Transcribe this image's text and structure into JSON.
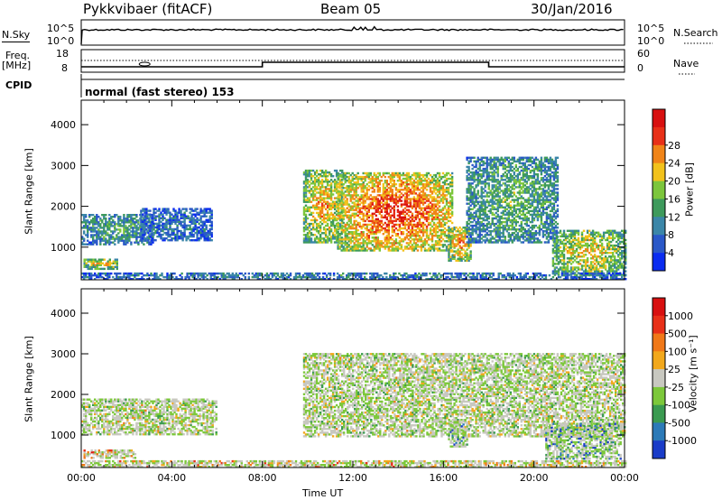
{
  "header": {
    "station": "Pykkvibaer (fitACF)",
    "beam": "Beam 05",
    "date": "30/Jan/2016"
  },
  "nsky_panel": {
    "left_label": "N.Sky",
    "left_ticks": [
      "10^5",
      "10^0"
    ],
    "right_ticks": [
      "10^5",
      "10^0"
    ],
    "right_label": "N.Search"
  },
  "freq_panel": {
    "left_label_1": "Freq.",
    "left_label_2": "[MHz]",
    "left_ticks": [
      "18",
      "8"
    ],
    "right_ticks": [
      "60",
      "0"
    ],
    "right_label": "Nave"
  },
  "cpid": {
    "label": "CPID",
    "text": "normal (fast stereo) 153"
  },
  "chart_data": [
    {
      "type": "heatmap",
      "quantity": "Power",
      "ylabel": "Slant Range [km]",
      "yticks": [
        "1000",
        "2000",
        "3000",
        "4000"
      ],
      "ylim": [
        200,
        4600
      ],
      "xlim": [
        0,
        24
      ],
      "colorbar_label": "Power [dB]",
      "colorbar_ticks": [
        "4",
        "8",
        "12",
        "16",
        "20",
        "24",
        "28"
      ],
      "colorbar_colors": [
        "#0a2cf0",
        "#2a58c8",
        "#3b86a8",
        "#3e9a5c",
        "#7cc63c",
        "#f2c21c",
        "#f08418",
        "#e83018",
        "#d81010"
      ],
      "regions": [
        {
          "t0": 0.0,
          "t1": 3.2,
          "r0": 1050,
          "r1": 1800,
          "level": 0.35
        },
        {
          "t0": 2.6,
          "t1": 5.8,
          "r0": 1150,
          "r1": 1950,
          "level": 0.2
        },
        {
          "t0": 0.1,
          "t1": 1.6,
          "r0": 450,
          "r1": 700,
          "level": 0.6
        },
        {
          "t0": 9.8,
          "t1": 11.5,
          "r0": 1100,
          "r1": 2900,
          "level": 0.65
        },
        {
          "t0": 11.3,
          "t1": 16.4,
          "r0": 900,
          "r1": 2800,
          "level": 0.85
        },
        {
          "t0": 16.2,
          "t1": 17.2,
          "r0": 650,
          "r1": 1500,
          "level": 0.7
        },
        {
          "t0": 17.0,
          "t1": 21.0,
          "r0": 1100,
          "r1": 3200,
          "level": 0.4
        },
        {
          "t0": 20.8,
          "t1": 24.0,
          "r0": 300,
          "r1": 1400,
          "level": 0.6
        },
        {
          "t0": 0.0,
          "t1": 24.0,
          "r0": 200,
          "r1": 360,
          "level": 0.25
        }
      ]
    },
    {
      "type": "heatmap",
      "quantity": "Velocity",
      "ylabel": "Slant Range [km]",
      "yticks": [
        "1000",
        "2000",
        "3000",
        "4000"
      ],
      "ylim": [
        200,
        4600
      ],
      "xlim": [
        0,
        24
      ],
      "xticks": [
        "00:00",
        "04:00",
        "08:00",
        "12:00",
        "16:00",
        "20:00",
        "00:00"
      ],
      "xlabel": "Time UT",
      "colorbar_label": "Velocity [m s⁻¹]",
      "colorbar_ticks": [
        "1000",
        "500",
        "100",
        "25",
        "-25",
        "-100",
        "-500",
        "-1000"
      ],
      "colorbar_colors": [
        "#1a3cc8",
        "#2c7ab8",
        "#3a9a50",
        "#7cc83a",
        "#c8c8c0",
        "#f2a81c",
        "#f07818",
        "#e83018",
        "#d81010"
      ],
      "regions": [
        {
          "t0": 0.0,
          "t1": 6.0,
          "r0": 1000,
          "r1": 1900,
          "level": 0.45
        },
        {
          "t0": 0.1,
          "t1": 2.4,
          "r0": 420,
          "r1": 620,
          "level": 0.7
        },
        {
          "t0": 9.8,
          "t1": 24.0,
          "r0": 950,
          "r1": 3000,
          "level": 0.45
        },
        {
          "t0": 16.2,
          "t1": 17.0,
          "r0": 700,
          "r1": 1300,
          "level": 0.25
        },
        {
          "t0": 20.5,
          "t1": 23.8,
          "r0": 400,
          "r1": 1300,
          "level": 0.2
        },
        {
          "t0": 0.0,
          "t1": 24.0,
          "r0": 200,
          "r1": 340,
          "level": 0.6
        }
      ]
    }
  ]
}
